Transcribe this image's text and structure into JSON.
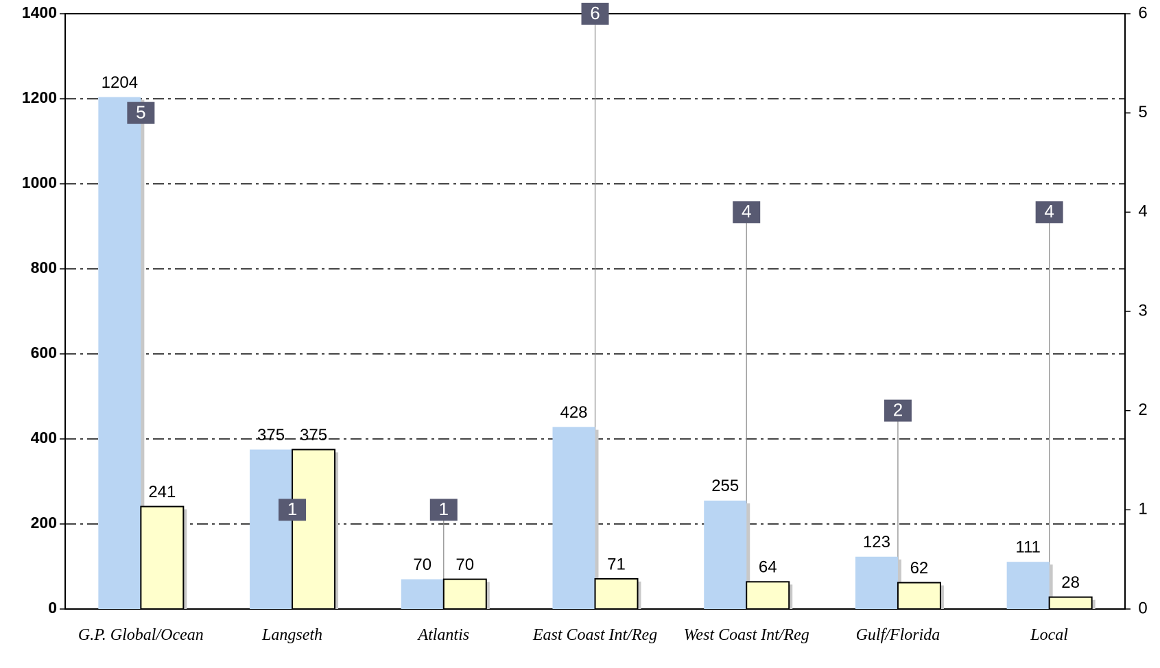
{
  "chart_data": {
    "type": "bar",
    "categories": [
      "G.P. Global/Ocean",
      "Langseth",
      "Atlantis",
      "East Coast Int/Reg",
      "West Coast Int/Reg",
      "Gulf/Florida",
      "Local"
    ],
    "series": [
      {
        "type": "bar",
        "color": "#b9d5f3",
        "values": [
          1204,
          375,
          70,
          428,
          255,
          123,
          111
        ]
      },
      {
        "type": "bar",
        "color": "#ffffcc",
        "values": [
          241,
          375,
          70,
          71,
          64,
          62,
          28
        ]
      },
      {
        "type": "marker",
        "axis": "y2",
        "color": "#585a72",
        "values": [
          5,
          1,
          1,
          6,
          4,
          2,
          4
        ]
      }
    ],
    "ylim": [
      0,
      1400
    ],
    "yticks": [
      0,
      200,
      400,
      600,
      800,
      1000,
      1200,
      1400
    ],
    "y2lim": [
      0,
      6
    ],
    "y2ticks": [
      0,
      1,
      2,
      3,
      4,
      5,
      6
    ],
    "grid": true
  }
}
